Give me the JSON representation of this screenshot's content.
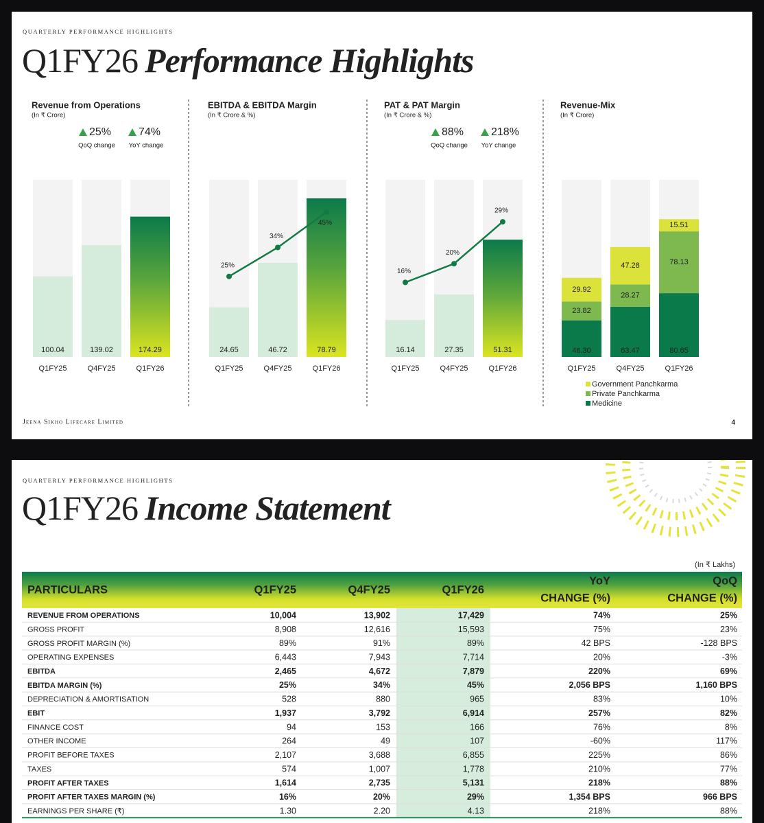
{
  "slides": [
    {
      "section": "QUARTERLY PERFORMANCE HIGHLIGHTS",
      "title_plain": "Q1FY26",
      "title_italic": "Performance Highlights",
      "footer": "Jeena Sikho Lifecare Limited",
      "page_number": "4",
      "charts": [
        {
          "type": "bar",
          "title": "Revenue from Operations",
          "unit": "(In ₹ Crore)",
          "changes": [
            {
              "value": "25%",
              "label": "QoQ change"
            },
            {
              "value": "74%",
              "label": "YoY change"
            }
          ],
          "categories": [
            "Q1FY25",
            "Q4FY25",
            "Q1FY26"
          ],
          "values": [
            100.04,
            139.02,
            174.29
          ],
          "ylim": [
            0,
            220
          ],
          "color": "#d5ebdc",
          "highlight_index": 2
        },
        {
          "type": "bar_line",
          "title": "EBITDA & EBITDA Margin",
          "unit": "(In ₹ Crore & %)",
          "categories": [
            "Q1FY25",
            "Q4FY25",
            "Q1FY26"
          ],
          "values": [
            24.65,
            46.72,
            78.79
          ],
          "margin": {
            "values": [
              25,
              34,
              45
            ],
            "value_labels": [
              "25%",
              "34%",
              "45%"
            ],
            "color": "#127a45"
          },
          "ylim": [
            0,
            88
          ],
          "y2lim": [
            0,
            55
          ],
          "color": "#d5ebdc",
          "highlight_index": 2
        },
        {
          "type": "bar_line",
          "title": "PAT & PAT Margin",
          "unit": "(In ₹ Crore & %)",
          "changes": [
            {
              "value": "88%",
              "label": "QoQ change"
            },
            {
              "value": "218%",
              "label": "YoY change"
            }
          ],
          "categories": [
            "Q1FY25",
            "Q4FY25",
            "Q1FY26"
          ],
          "values": [
            16.14,
            27.35,
            51.31
          ],
          "margin": {
            "values": [
              16,
              20,
              29
            ],
            "value_labels": [
              "16%",
              "20%",
              "29%"
            ],
            "color": "#127a45"
          },
          "ylim": [
            0,
            77.5
          ],
          "y2lim": [
            0,
            38
          ],
          "color": "#d5ebdc",
          "highlight_index": 2
        },
        {
          "type": "stacked_bar",
          "title": "Revenue-Mix",
          "unit": "(In ₹ Crore)",
          "categories": [
            "Q1FY25",
            "Q4FY25",
            "Q1FY26"
          ],
          "ylim": [
            0,
            224
          ],
          "series": [
            {
              "name": "Medicine",
              "color": "#0b7a4b",
              "values": [
                46.3,
                63.47,
                80.65
              ],
              "value_labels": [
                "46.30",
                "63.47",
                "80.65"
              ]
            },
            {
              "name": "Private Panchkarma",
              "color": "#7db94f",
              "values": [
                23.82,
                28.27,
                78.13
              ]
            },
            {
              "name": "Government Panchkarma",
              "color": "#dbe33b",
              "values": [
                29.92,
                47.28,
                15.51
              ]
            }
          ]
        }
      ]
    },
    {
      "section": "QUARTERLY PERFORMANCE HIGHLIGHTS",
      "title_plain": "Q1FY26",
      "title_italic": "Income Statement",
      "table": {
        "unit": "(In ₹ Lakhs)",
        "columns": [
          [
            "PARTICULARS"
          ],
          [
            "Q1FY25"
          ],
          [
            "Q4FY25"
          ],
          [
            "Q1FY26"
          ],
          [
            "YoY",
            "CHANGE (%)"
          ],
          [
            "QoQ",
            "CHANGE (%)"
          ]
        ],
        "highlight_column": 3,
        "bold_rows": [
          0,
          4,
          5,
          7,
          12,
          13
        ],
        "rows": [
          [
            "REVENUE FROM OPERATIONS",
            "10,004",
            "13,902",
            "17,429",
            "74%",
            "25%"
          ],
          [
            "GROSS PROFIT",
            "8,908",
            "12,616",
            "15,593",
            "75%",
            "23%"
          ],
          [
            "GROSS PROFIT MARGIN (%)",
            "89%",
            "91%",
            "89%",
            "42 BPS",
            "-128 BPS"
          ],
          [
            "OPERATING EXPENSES",
            "6,443",
            "7,943",
            "7,714",
            "20%",
            "-3%"
          ],
          [
            "EBITDA",
            "2,465",
            "4,672",
            "7,879",
            "220%",
            "69%"
          ],
          [
            "EBITDA MARGIN (%)",
            "25%",
            "34%",
            "45%",
            "2,056 BPS",
            "1,160 BPS"
          ],
          [
            "DEPRECIATION & AMORTISATION",
            "528",
            "880",
            "965",
            "83%",
            "10%"
          ],
          [
            "EBIT",
            "1,937",
            "3,792",
            "6,914",
            "257%",
            "82%"
          ],
          [
            "FINANCE  COST",
            "94",
            "153",
            "166",
            "76%",
            "8%"
          ],
          [
            "OTHER INCOME",
            "264",
            "49",
            "107",
            "-60%",
            "117%"
          ],
          [
            "PROFIT BEFORE TAXES",
            "2,107",
            "3,688",
            "6,855",
            "225%",
            "86%"
          ],
          [
            "TAXES",
            "574",
            "1,007",
            "1,778",
            "210%",
            "77%"
          ],
          [
            "PROFIT AFTER TAXES",
            "1,614",
            "2,735",
            "5,131",
            "218%",
            "88%"
          ],
          [
            "PROFIT AFTER TAXES MARGIN (%)",
            "16%",
            "20%",
            "29%",
            "1,354 BPS",
            "966 BPS"
          ],
          [
            "EARNINGS PER SHARE (₹)",
            "1.30",
            "2.20",
            "4.13",
            "218%",
            "88%"
          ]
        ]
      }
    }
  ]
}
